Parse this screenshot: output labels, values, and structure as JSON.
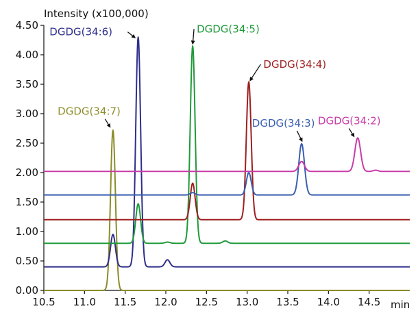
{
  "chart_data": {
    "type": "line",
    "title": "",
    "xlabel": "min",
    "ylabel": "Intensity (x100,000)",
    "xlim": [
      10.5,
      15.0
    ],
    "ylim": [
      0.0,
      4.5
    ],
    "x_ticks": [
      "10.5",
      "11.0",
      "11.5",
      "12.0",
      "12.5",
      "13.0",
      "13.5",
      "14.0",
      "14.5"
    ],
    "y_ticks": [
      "0.00",
      "0.50",
      "1.00",
      "1.50",
      "2.00",
      "2.50",
      "3.00",
      "3.50",
      "4.00",
      "4.50"
    ],
    "grid": false,
    "series": [
      {
        "name": "DGDG(34:7)",
        "color": "#8c8c2a",
        "baseline": 0.0,
        "peaks": [
          [
            11.35,
            2.72,
            0.03
          ]
        ]
      },
      {
        "name": "DGDG(34:6)",
        "color": "#2e2e8c",
        "baseline": 0.4,
        "peaks": [
          [
            11.35,
            0.55,
            0.03
          ],
          [
            11.66,
            3.9,
            0.03
          ],
          [
            12.02,
            0.12,
            0.03
          ]
        ]
      },
      {
        "name": "DGDG(34:5)",
        "color": "#1f9a3a",
        "baseline": 0.8,
        "peaks": [
          [
            11.66,
            0.67,
            0.03
          ],
          [
            12.02,
            0.02,
            0.03
          ],
          [
            12.33,
            3.35,
            0.03
          ],
          [
            12.73,
            0.04,
            0.03
          ]
        ]
      },
      {
        "name": "DGDG(34:4)",
        "color": "#9e1f1f",
        "baseline": 1.2,
        "peaks": [
          [
            12.33,
            0.62,
            0.03
          ],
          [
            13.02,
            2.34,
            0.03
          ]
        ]
      },
      {
        "name": "DGDG(34:3)",
        "color": "#3a5eb0",
        "baseline": 1.62,
        "peaks": [
          [
            12.33,
            0.04,
            0.03
          ],
          [
            13.02,
            0.38,
            0.03
          ],
          [
            13.67,
            0.87,
            0.035
          ]
        ]
      },
      {
        "name": "DGDG(34:2)",
        "color": "#c83ca8",
        "baseline": 2.02,
        "peaks": [
          [
            13.67,
            0.17,
            0.035
          ],
          [
            14.36,
            0.57,
            0.035
          ],
          [
            14.58,
            0.02,
            0.03
          ]
        ]
      }
    ],
    "annotations": [
      {
        "text": "DGDG(34:7)",
        "series": 0,
        "x": 10.67,
        "y": 2.98,
        "point_x": 11.32,
        "point_y": 2.76
      },
      {
        "text": "DGDG(34:6)",
        "series": 1,
        "x": 10.57,
        "y": 4.33,
        "point_x": 11.63,
        "point_y": 4.28
      },
      {
        "text": "DGDG(34:5)",
        "series": 2,
        "x": 12.38,
        "y": 4.38,
        "point_x": 12.33,
        "point_y": 4.17
      },
      {
        "text": "DGDG(34:4)",
        "series": 3,
        "x": 13.2,
        "y": 3.78,
        "point_x": 13.03,
        "point_y": 3.55
      },
      {
        "text": "DGDG(34:3)",
        "series": 4,
        "x": 13.06,
        "y": 2.78,
        "point_x": 13.68,
        "point_y": 2.52
      },
      {
        "text": "DGDG(34:2)",
        "series": 5,
        "x": 13.87,
        "y": 2.82,
        "point_x": 14.32,
        "point_y": 2.6
      }
    ]
  }
}
